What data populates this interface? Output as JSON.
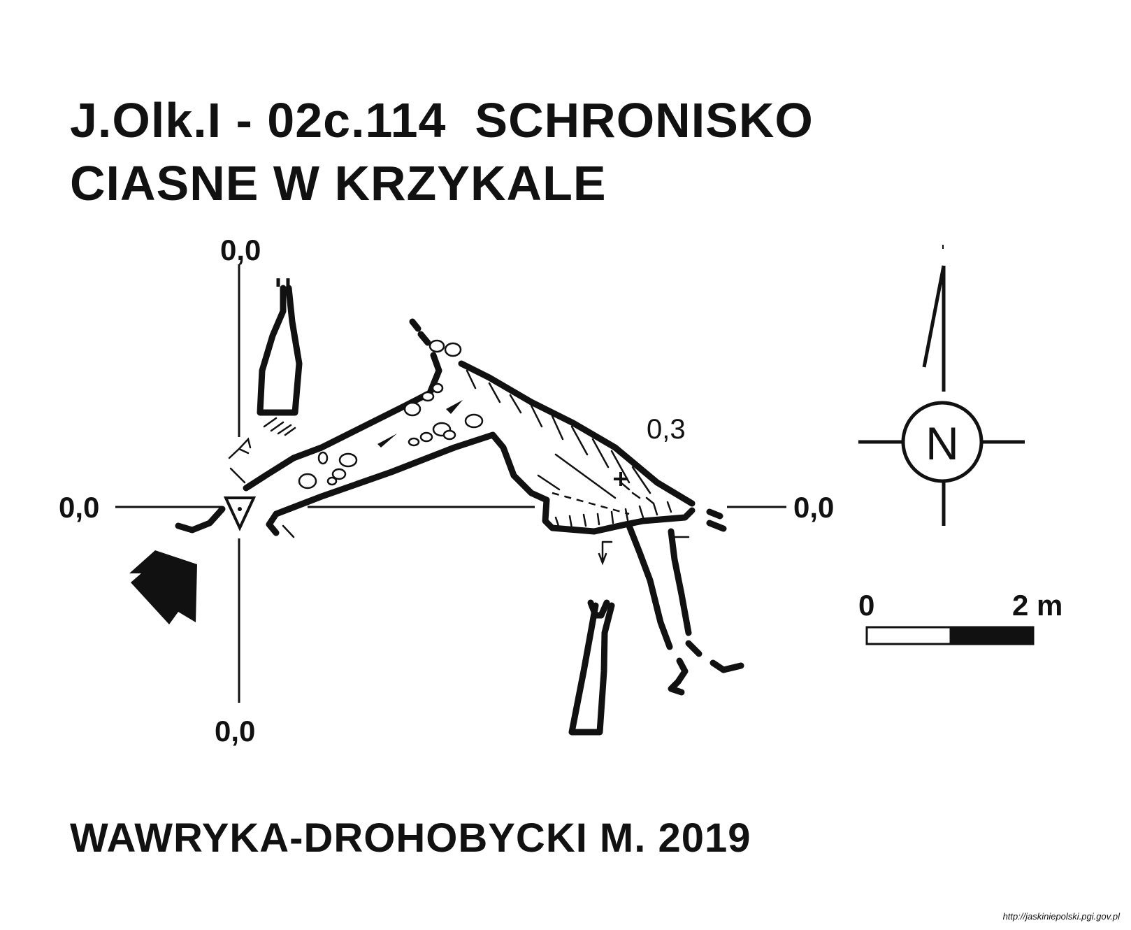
{
  "title": {
    "line1": "J.Olk.I - 02c.114  SCHRONISKO",
    "line2": "CIASNE W KRZYKALE"
  },
  "author": "WAWRYKA-DROHOBYCKI M. 2019",
  "source_url": "http://jaskiniepolski.pgi.gov.pl",
  "plan_labels": {
    "top": "0,0",
    "left": "0,0",
    "right": "0,0",
    "bottom": "0,0",
    "depth_point": "0,3"
  },
  "compass": {
    "letter": "N"
  },
  "scale_bar": {
    "start_label": "0",
    "end_label": "2 m"
  },
  "colors": {
    "ink": "#111111",
    "background": "#ffffff"
  },
  "icons": [
    "north-arrow-icon",
    "entrance-arrow-icon",
    "entrance-triangle-icon"
  ]
}
